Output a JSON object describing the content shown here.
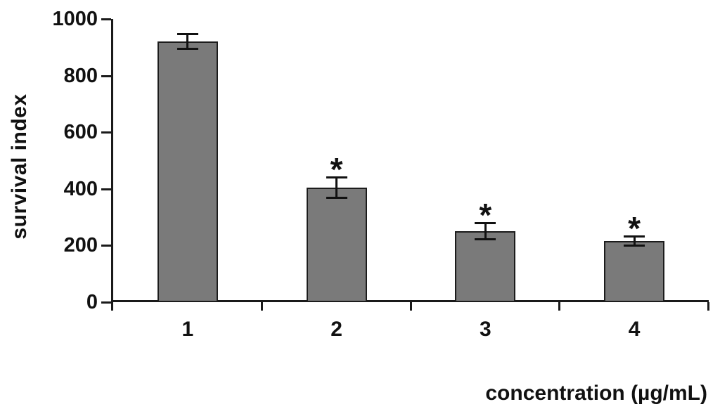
{
  "chart_data": {
    "type": "bar",
    "title": "",
    "xlabel": "concentration (µg/mL)",
    "ylabel": "survival index",
    "categories": [
      "1",
      "2",
      "3",
      "4"
    ],
    "values": [
      920,
      405,
      250,
      215
    ],
    "errors": [
      25,
      35,
      27,
      15
    ],
    "significance": [
      "",
      "*",
      "*",
      "*"
    ],
    "ylim": [
      0,
      1000
    ],
    "yticks": [
      0,
      200,
      400,
      600,
      800,
      1000
    ],
    "bar_color": "#7a7a7a",
    "bar_border_color": "#1c1c1c",
    "axis_color": "#1a1a1a",
    "significance_marker_color": "#111111",
    "grid": false,
    "legend": null
  }
}
